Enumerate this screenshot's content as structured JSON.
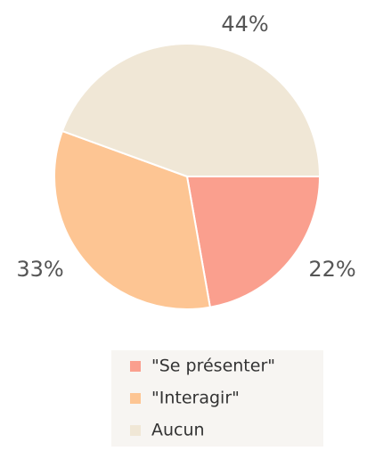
{
  "chart_data": {
    "type": "pie",
    "categories": [
      "\"Se présenter\"",
      "\"Interagir\"",
      "Aucun"
    ],
    "values": [
      22,
      33,
      44
    ],
    "value_labels": [
      "22%",
      "33%",
      "44%"
    ],
    "colors": [
      "#fa9f8e",
      "#fdc593",
      "#f0e7d6"
    ],
    "legend": "bottom"
  }
}
